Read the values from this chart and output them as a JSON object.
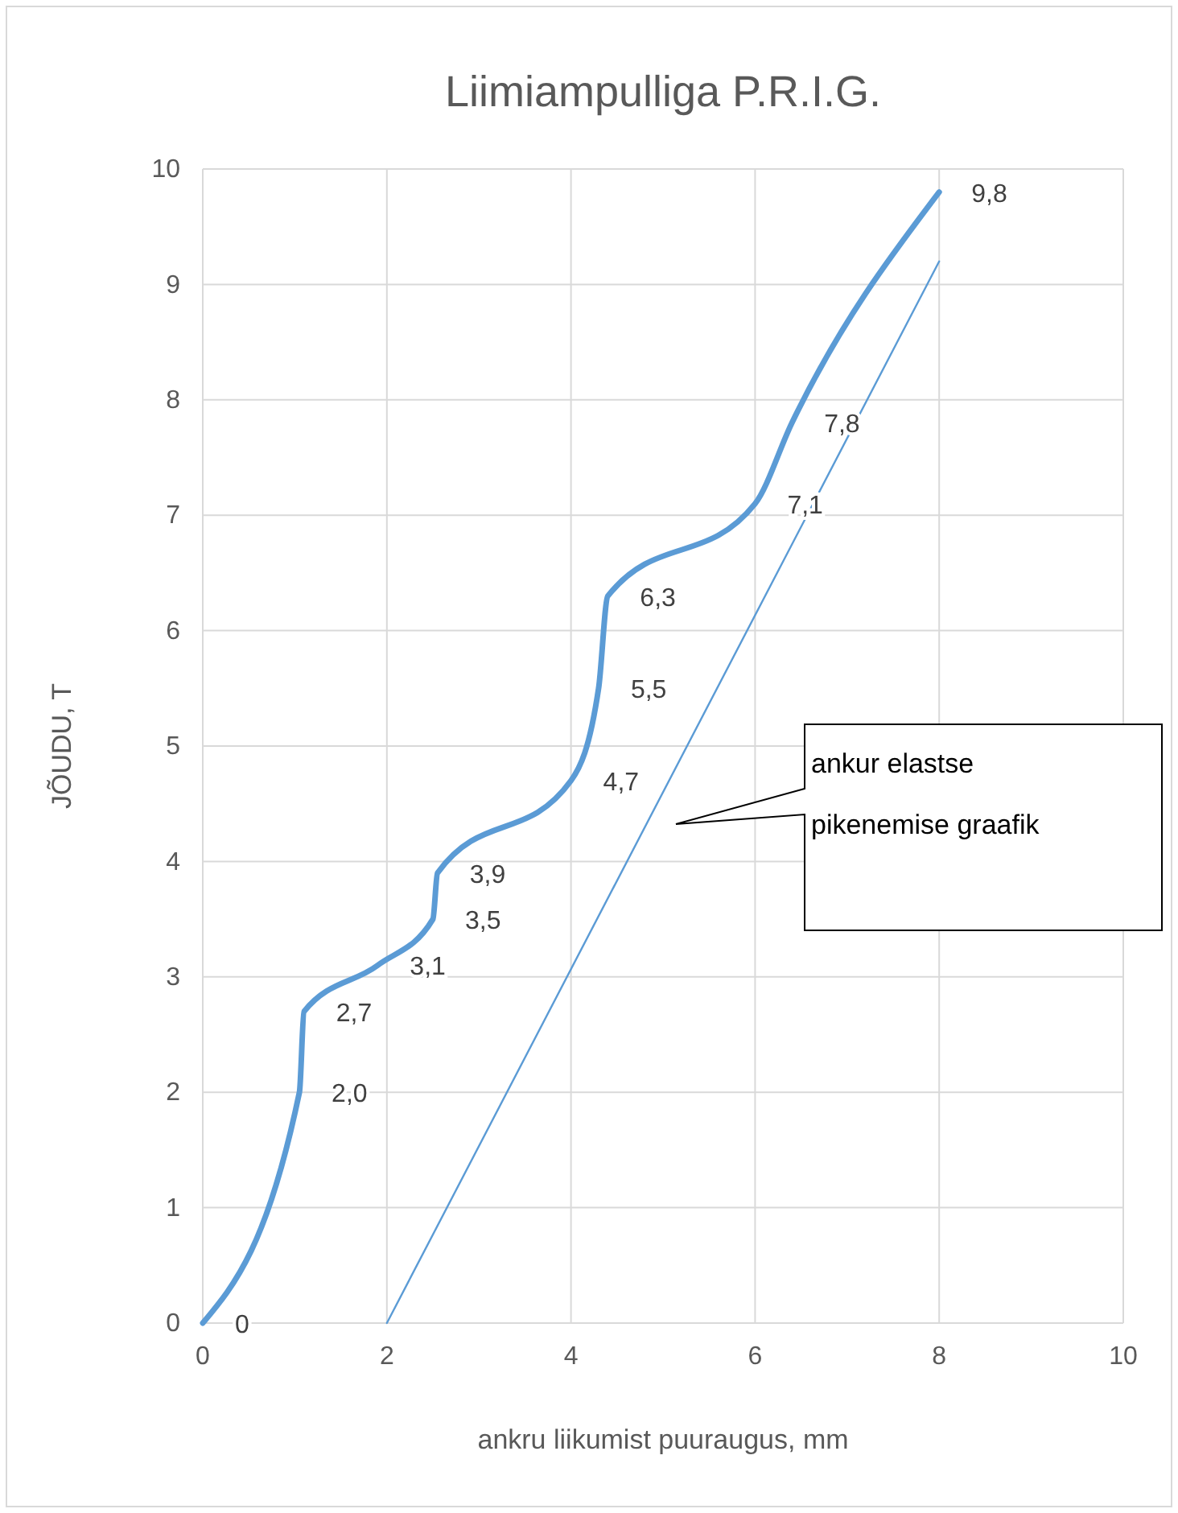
{
  "chart_data": {
    "type": "line",
    "title": "Liimiampulliga P.R.I.G.",
    "xlabel": "ankru liikumist puuraugus, mm",
    "ylabel": "JÕUDU, T",
    "xlim": [
      0,
      10
    ],
    "xticks": [
      0,
      2,
      4,
      6,
      8,
      10
    ],
    "ylim": [
      0,
      10
    ],
    "yticks": [
      0,
      1,
      2,
      3,
      4,
      5,
      6,
      7,
      8,
      9,
      10
    ],
    "grid": true,
    "marker": "none",
    "line_style": "solid",
    "series": [
      {
        "color": "#5b9bd5",
        "x": [
          0,
          1.05,
          1.1,
          1.9,
          2.5,
          2.55,
          4.0,
          4.3,
          4.4,
          6.0,
          6.4,
          8.0
        ],
        "values": [
          0,
          2.0,
          2.7,
          3.1,
          3.5,
          3.9,
          4.7,
          5.5,
          6.3,
          7.1,
          7.8,
          9.8
        ],
        "value_labels": [
          "0",
          "2,0",
          "2,7",
          "3,1",
          "3,5",
          "3,9",
          "4,7",
          "5,5",
          "6,3",
          "7,1",
          "7,8",
          "9,8"
        ]
      },
      {
        "color": "#5b9bd5",
        "x": [
          2,
          8
        ],
        "values": [
          0,
          9.2
        ]
      }
    ],
    "annotations": [
      "ankur elastse pikenemise graafik"
    ]
  }
}
